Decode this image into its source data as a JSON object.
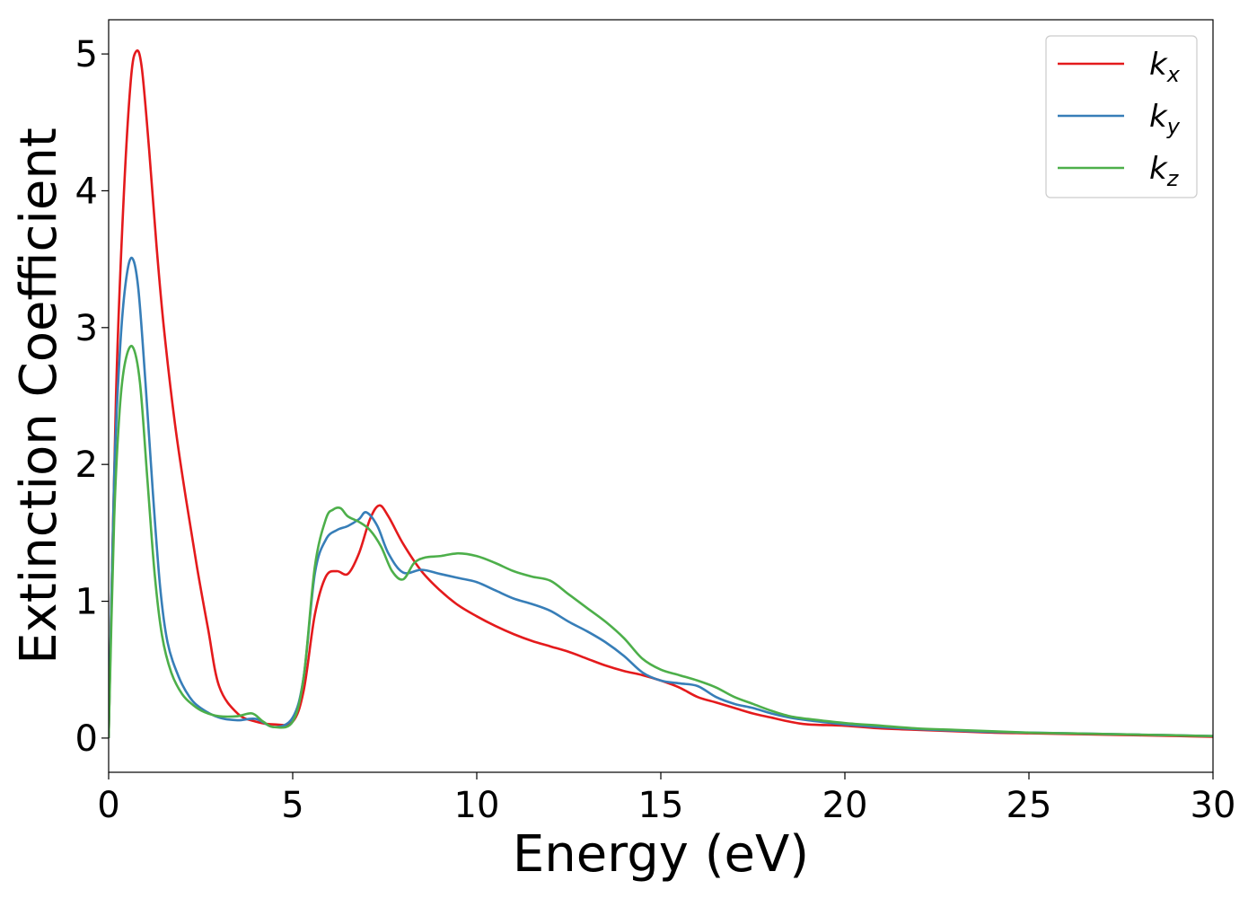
{
  "chart_data": {
    "type": "line",
    "title": "",
    "xlabel": "Energy (eV)",
    "ylabel": "Extinction Coefficient",
    "xlim": [
      0,
      30
    ],
    "ylim": [
      -0.25,
      5.25
    ],
    "xticks": [
      0,
      5,
      10,
      15,
      20,
      25,
      30
    ],
    "xtick_labels": [
      "0",
      "5",
      "10",
      "15",
      "20",
      "25",
      "30"
    ],
    "yticks": [
      0,
      1,
      2,
      3,
      4,
      5
    ],
    "ytick_labels": [
      "0",
      "1",
      "2",
      "3",
      "4",
      "5"
    ],
    "grid": false,
    "legend_position": "top-right",
    "series": [
      {
        "name": "k_x",
        "label_main": "k",
        "label_sub": "x",
        "color": "#e41a1c",
        "x": [
          0,
          0.2,
          0.4,
          0.6,
          0.75,
          0.9,
          1.1,
          1.3,
          1.5,
          1.8,
          2.1,
          2.4,
          2.7,
          3.0,
          3.5,
          4.0,
          4.5,
          5.0,
          5.3,
          5.6,
          5.9,
          6.2,
          6.5,
          6.8,
          7.1,
          7.35,
          7.6,
          8.0,
          8.5,
          9.0,
          9.5,
          10.0,
          10.5,
          11.0,
          11.5,
          12.0,
          12.5,
          13.0,
          13.5,
          14.0,
          14.5,
          15.0,
          15.5,
          16.0,
          16.5,
          17.0,
          17.5,
          18.0,
          18.5,
          19.0,
          20.0,
          21.0,
          22.0,
          23.0,
          24.0,
          25.0,
          26.0,
          27.0,
          28.0,
          29.0,
          30.0
        ],
        "y": [
          0,
          2.5,
          3.9,
          4.8,
          5.02,
          4.9,
          4.3,
          3.6,
          3.0,
          2.3,
          1.75,
          1.25,
          0.8,
          0.38,
          0.18,
          0.12,
          0.1,
          0.12,
          0.35,
          0.9,
          1.18,
          1.22,
          1.2,
          1.35,
          1.6,
          1.7,
          1.62,
          1.42,
          1.22,
          1.08,
          0.97,
          0.89,
          0.82,
          0.76,
          0.71,
          0.67,
          0.63,
          0.58,
          0.53,
          0.49,
          0.46,
          0.42,
          0.37,
          0.3,
          0.26,
          0.22,
          0.18,
          0.15,
          0.12,
          0.1,
          0.09,
          0.07,
          0.06,
          0.05,
          0.04,
          0.035,
          0.03,
          0.025,
          0.02,
          0.015,
          0.01
        ]
      },
      {
        "name": "k_y",
        "label_main": "k",
        "label_sub": "y",
        "color": "#377eb8",
        "x": [
          0,
          0.15,
          0.3,
          0.45,
          0.62,
          0.8,
          1.0,
          1.2,
          1.4,
          1.6,
          1.9,
          2.2,
          2.5,
          3.0,
          3.5,
          4.0,
          4.5,
          5.0,
          5.3,
          5.6,
          5.9,
          6.2,
          6.5,
          6.8,
          7.0,
          7.3,
          7.6,
          8.0,
          8.5,
          9.0,
          9.5,
          10.0,
          10.5,
          11.0,
          11.5,
          12.0,
          12.5,
          13.0,
          13.5,
          14.0,
          14.5,
          15.0,
          15.5,
          16.0,
          16.5,
          17.0,
          17.5,
          18.0,
          18.5,
          19.0,
          20.0,
          21.0,
          22.0,
          23.0,
          24.0,
          25.0,
          26.0,
          27.0,
          28.0,
          29.0,
          30.0
        ],
        "y": [
          0,
          1.9,
          2.8,
          3.3,
          3.51,
          3.3,
          2.6,
          1.8,
          1.1,
          0.7,
          0.45,
          0.3,
          0.22,
          0.15,
          0.13,
          0.14,
          0.08,
          0.15,
          0.45,
          1.2,
          1.45,
          1.52,
          1.55,
          1.6,
          1.65,
          1.55,
          1.35,
          1.21,
          1.23,
          1.2,
          1.17,
          1.14,
          1.08,
          1.02,
          0.98,
          0.93,
          0.85,
          0.78,
          0.7,
          0.6,
          0.48,
          0.42,
          0.4,
          0.38,
          0.3,
          0.25,
          0.22,
          0.18,
          0.15,
          0.13,
          0.1,
          0.08,
          0.065,
          0.055,
          0.045,
          0.04,
          0.035,
          0.03,
          0.025,
          0.02,
          0.015
        ]
      },
      {
        "name": "k_z",
        "label_main": "k",
        "label_sub": "z",
        "color": "#4daf4a",
        "x": [
          0,
          0.15,
          0.3,
          0.45,
          0.65,
          0.85,
          1.05,
          1.25,
          1.45,
          1.7,
          2.0,
          2.3,
          2.6,
          3.0,
          3.5,
          3.9,
          4.2,
          4.5,
          5.0,
          5.3,
          5.6,
          5.9,
          6.1,
          6.3,
          6.5,
          6.8,
          7.1,
          7.4,
          7.7,
          8.0,
          8.3,
          8.6,
          9.0,
          9.5,
          10.0,
          10.5,
          11.0,
          11.5,
          12.0,
          12.5,
          13.0,
          13.5,
          14.0,
          14.5,
          15.0,
          15.5,
          16.0,
          16.5,
          17.0,
          17.5,
          18.0,
          18.5,
          19.0,
          20.0,
          21.0,
          22.0,
          23.0,
          24.0,
          25.0,
          26.0,
          27.0,
          28.0,
          29.0,
          30.0
        ],
        "y": [
          0,
          1.6,
          2.4,
          2.75,
          2.86,
          2.6,
          1.9,
          1.2,
          0.75,
          0.48,
          0.32,
          0.24,
          0.19,
          0.16,
          0.16,
          0.18,
          0.12,
          0.08,
          0.12,
          0.45,
          1.25,
          1.6,
          1.67,
          1.68,
          1.62,
          1.58,
          1.52,
          1.4,
          1.22,
          1.16,
          1.28,
          1.32,
          1.33,
          1.35,
          1.33,
          1.28,
          1.22,
          1.18,
          1.15,
          1.05,
          0.95,
          0.85,
          0.73,
          0.58,
          0.5,
          0.46,
          0.42,
          0.37,
          0.3,
          0.25,
          0.2,
          0.16,
          0.14,
          0.11,
          0.09,
          0.07,
          0.06,
          0.05,
          0.04,
          0.035,
          0.03,
          0.025,
          0.02,
          0.015
        ]
      }
    ]
  },
  "style": {
    "background": "#ffffff",
    "axis_color": "#000000",
    "legend_border": "#cccccc"
  }
}
